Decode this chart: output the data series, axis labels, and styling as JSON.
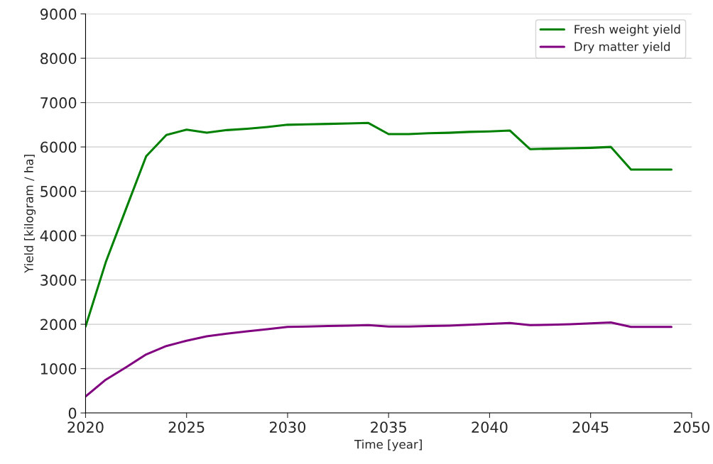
{
  "chart_data": {
    "type": "line",
    "xlabel": "Time [year]",
    "ylabel": "Yield [kilogram / ha]",
    "x": [
      2020,
      2021,
      2022,
      2023,
      2024,
      2025,
      2026,
      2027,
      2028,
      2029,
      2030,
      2031,
      2032,
      2033,
      2034,
      2035,
      2036,
      2037,
      2038,
      2039,
      2040,
      2041,
      2042,
      2043,
      2044,
      2045,
      2046,
      2047,
      2048,
      2049
    ],
    "series": [
      {
        "name": "Fresh weight yield",
        "color": "#008000",
        "values": [
          1950,
          3400,
          4600,
          5790,
          6270,
          6390,
          6320,
          6380,
          6410,
          6450,
          6500,
          6510,
          6520,
          6530,
          6540,
          6290,
          6290,
          6310,
          6320,
          6340,
          6350,
          6370,
          5950,
          5960,
          5970,
          5980,
          6000,
          5490,
          5490,
          5490
        ]
      },
      {
        "name": "Dry matter yield",
        "color": "#800080",
        "values": [
          370,
          750,
          1030,
          1320,
          1510,
          1630,
          1730,
          1790,
          1840,
          1890,
          1940,
          1950,
          1960,
          1970,
          1980,
          1950,
          1950,
          1960,
          1970,
          1990,
          2010,
          2030,
          1980,
          1990,
          2000,
          2020,
          2040,
          1940,
          1940,
          1940
        ]
      }
    ],
    "xlim": [
      2020,
      2050
    ],
    "xticks": [
      2020,
      2025,
      2030,
      2035,
      2040,
      2045,
      2050
    ],
    "ylim": [
      0,
      9000
    ],
    "yticks": [
      0,
      1000,
      2000,
      3000,
      4000,
      5000,
      6000,
      7000,
      8000,
      9000
    ],
    "grid": "y",
    "legend": "top right"
  }
}
